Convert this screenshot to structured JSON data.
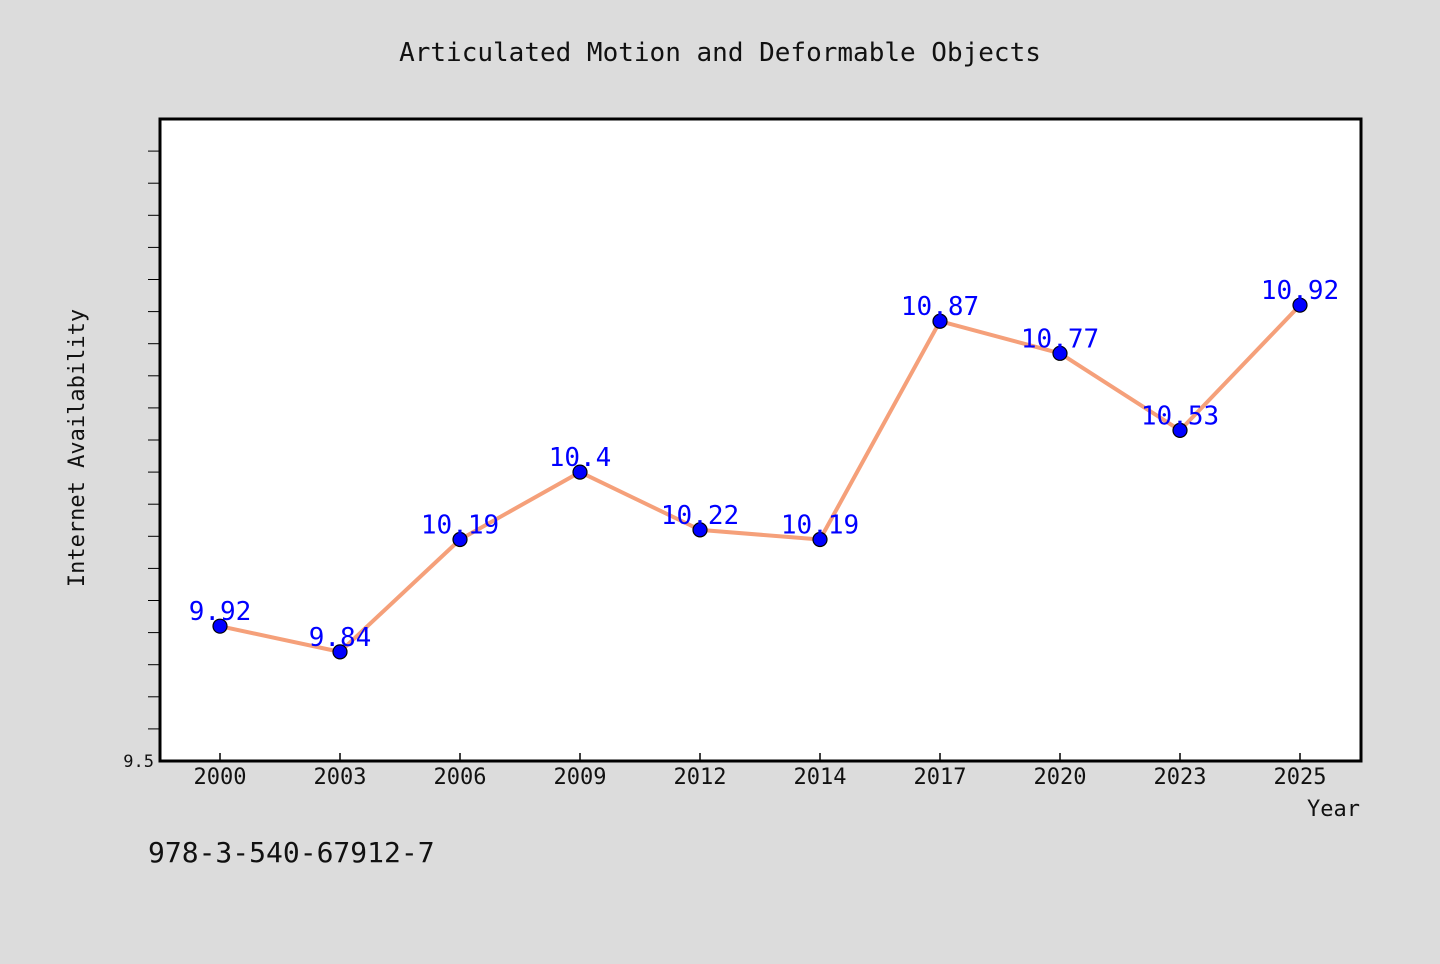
{
  "chart_data": {
    "type": "line",
    "title": "Articulated Motion and Deformable Objects",
    "xlabel": "Year",
    "ylabel": "Internet Availability",
    "categories": [
      "2000",
      "2003",
      "2006",
      "2009",
      "2012",
      "2014",
      "2017",
      "2020",
      "2023",
      "2025"
    ],
    "series": [
      {
        "values": [
          9.92,
          9.84,
          10.19,
          10.4,
          10.22,
          10.19,
          10.87,
          10.77,
          10.53,
          10.92
        ],
        "data_labels": [
          "9.92",
          "9.84",
          "10.19",
          "10.4",
          "10.22",
          "10.19",
          "10.87",
          "10.77",
          "10.53",
          "10.92"
        ]
      }
    ],
    "ylim": [
      9.5,
      11.5
    ],
    "yticks": [
      {
        "value": 9.5,
        "label": "9.5"
      }
    ],
    "grid": false,
    "line_color": "#f5a07a",
    "marker_color": "#0000ff",
    "label_color": "#0000ff"
  },
  "footer_text": "978-3-540-67912-7",
  "colors": {
    "background": "#dcdcdc",
    "plot_background": "#ffffff",
    "axes": "#000000"
  }
}
